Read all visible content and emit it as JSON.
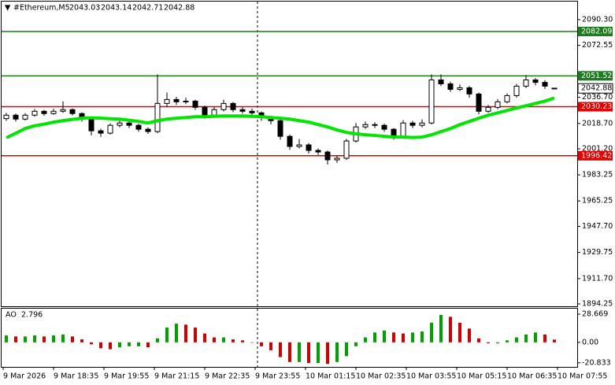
{
  "chart_data": [
    {
      "type": "candlestick",
      "title": "#Ethereum,M5",
      "candles": [
        [
          2022.0,
          2026.0,
          2020.5,
          2024.4
        ],
        [
          2024.4,
          2025.5,
          2020.0,
          2021.7
        ],
        [
          2021.7,
          2025.8,
          2020.8,
          2024.4
        ],
        [
          2024.4,
          2028.6,
          2023.3,
          2027.1
        ],
        [
          2027.1,
          2028.0,
          2024.0,
          2025.5
        ],
        [
          2025.5,
          2028.8,
          2024.6,
          2027.1
        ],
        [
          2027.1,
          2034.0,
          2026.0,
          2028.2
        ],
        [
          2028.2,
          2029.0,
          2024.2,
          2025.5
        ],
        [
          2025.5,
          2026.4,
          2020.0,
          2021.7
        ],
        [
          2021.7,
          2022.5,
          2010.5,
          2013.6
        ],
        [
          2013.6,
          2015.0,
          2009.5,
          2012.0
        ],
        [
          2012.0,
          2018.8,
          2011.0,
          2017.4
        ],
        [
          2017.4,
          2020.5,
          2016.0,
          2019.0
        ],
        [
          2019.0,
          2020.0,
          2015.5,
          2017.4
        ],
        [
          2017.4,
          2018.5,
          2013.0,
          2014.7
        ],
        [
          2014.7,
          2016.0,
          2011.5,
          2013.1
        ],
        [
          2013.1,
          2052.5,
          2012.0,
          2032.5
        ],
        [
          2032.5,
          2040.0,
          2030.0,
          2035.2
        ],
        [
          2035.2,
          2037.0,
          2031.5,
          2033.6
        ],
        [
          2033.6,
          2036.5,
          2032.0,
          2034.1
        ],
        [
          2034.1,
          2035.0,
          2028.0,
          2029.8
        ],
        [
          2029.8,
          2031.0,
          2022.0,
          2024.4
        ],
        [
          2024.4,
          2030.0,
          2023.0,
          2028.2
        ],
        [
          2028.2,
          2035.0,
          2027.0,
          2032.5
        ],
        [
          2032.5,
          2033.5,
          2026.5,
          2028.2
        ],
        [
          2028.2,
          2030.0,
          2025.5,
          2027.1
        ],
        [
          2027.1,
          2029.0,
          2024.5,
          2026.0
        ],
        [
          2026.0,
          2027.0,
          2020.5,
          2022.8
        ],
        [
          2022.8,
          2024.0,
          2018.0,
          2020.6
        ],
        [
          2020.6,
          2021.5,
          2007.5,
          2009.8
        ],
        [
          2009.8,
          2011.0,
          2000.5,
          2002.8
        ],
        [
          2002.8,
          2008.0,
          2001.5,
          2003.9
        ],
        [
          2003.9,
          2005.0,
          1998.0,
          2000.1
        ],
        [
          2000.1,
          2001.5,
          1997.0,
          1999.0
        ],
        [
          1999.0,
          2000.0,
          1990.5,
          1993.6
        ],
        [
          1993.6,
          1996.5,
          1991.5,
          1994.7
        ],
        [
          1994.7,
          2008.0,
          1993.5,
          2006.6
        ],
        [
          2006.6,
          2019.0,
          2005.5,
          2016.3
        ],
        [
          2016.3,
          2020.0,
          2015.0,
          2017.9
        ],
        [
          2017.9,
          2019.5,
          2015.5,
          2017.4
        ],
        [
          2017.4,
          2018.5,
          2013.0,
          2014.7
        ],
        [
          2014.7,
          2015.5,
          2007.5,
          2009.8
        ],
        [
          2009.8,
          2021.0,
          2008.5,
          2019.0
        ],
        [
          2019.0,
          2020.5,
          2015.5,
          2017.4
        ],
        [
          2017.4,
          2021.5,
          2016.0,
          2019.0
        ],
        [
          2019.0,
          2052.5,
          2018.0,
          2048.7
        ],
        [
          2048.7,
          2052.5,
          2044.5,
          2046.0
        ],
        [
          2046.0,
          2047.5,
          2040.5,
          2042.2
        ],
        [
          2042.2,
          2045.5,
          2041.0,
          2043.3
        ],
        [
          2043.3,
          2044.5,
          2036.5,
          2039.0
        ],
        [
          2039.0,
          2040.0,
          2025.0,
          2027.1
        ],
        [
          2027.1,
          2031.5,
          2026.0,
          2029.8
        ],
        [
          2029.8,
          2035.5,
          2028.5,
          2033.6
        ],
        [
          2033.6,
          2039.5,
          2032.5,
          2037.9
        ],
        [
          2037.9,
          2046.0,
          2036.5,
          2044.4
        ],
        [
          2044.4,
          2052.0,
          2043.0,
          2048.7
        ],
        [
          2048.7,
          2050.0,
          2045.0,
          2047.0
        ],
        [
          2047.0,
          2048.5,
          2042.5,
          2044.4
        ],
        [
          2043.03,
          2043.14,
          2042.71,
          2042.88
        ]
      ],
      "ma": {
        "color": "#00e600",
        "values": [
          2008.8,
          2012.0,
          2015.2,
          2017.1,
          2018.2,
          2019.6,
          2020.6,
          2021.5,
          2022.3,
          2022.6,
          2022.3,
          2022.0,
          2021.7,
          2020.9,
          2020.1,
          2019.0,
          2020.6,
          2021.7,
          2022.3,
          2022.8,
          2023.3,
          2023.3,
          2023.6,
          2023.9,
          2023.9,
          2023.9,
          2023.6,
          2023.3,
          2022.8,
          2022.3,
          2021.7,
          2020.6,
          2019.6,
          2017.9,
          2016.3,
          2014.2,
          2012.5,
          2011.5,
          2010.9,
          2010.4,
          2009.8,
          2009.3,
          2009.3,
          2009.0,
          2009.3,
          2010.9,
          2013.1,
          2015.2,
          2017.9,
          2020.1,
          2022.3,
          2024.4,
          2026.0,
          2027.7,
          2029.3,
          2030.9,
          2032.5,
          2034.1,
          2036.3
        ]
      },
      "levels": [
        {
          "value": 2082.09,
          "color": "#1b7d1b"
        },
        {
          "value": 2051.52,
          "color": "#1b7d1b"
        },
        {
          "value": 2030.23,
          "color": "#e00000"
        },
        {
          "value": 1996.42,
          "color": "#e00000"
        }
      ],
      "ylim": [
        1892.63,
        2102.72
      ],
      "yticks": [
        {
          "value": 2090.3,
          "label": "2090.30"
        },
        {
          "value": 2072.55,
          "label": "2072.55"
        },
        {
          "value": 2036.7,
          "label": "2036.70"
        },
        {
          "value": 2018.7,
          "label": "2018.70"
        },
        {
          "value": 2001.2,
          "label": "2001.20"
        },
        {
          "value": 1983.25,
          "label": "1983.25"
        },
        {
          "value": 1965.25,
          "label": "1965.25"
        },
        {
          "value": 1947.7,
          "label": "1947.70"
        },
        {
          "value": 1929.75,
          "label": "1929.75"
        },
        {
          "value": 1911.7,
          "label": "1911.70"
        },
        {
          "value": 1894.25,
          "label": "1894.25"
        }
      ],
      "x_labels": [
        "9 Mar 2026",
        "9 Mar 18:35",
        "9 Mar 19:55",
        "9 Mar 21:15",
        "9 Mar 22:35",
        "9 Mar 23:55",
        "10 Mar 01:15",
        "10 Mar 02:35",
        "10 Mar 03:55",
        "10 Mar 05:15",
        "10 Mar 06:35",
        "10 Mar 07:55"
      ]
    },
    {
      "type": "bar",
      "title": "AO",
      "values": [
        7,
        6,
        6,
        7,
        6,
        7,
        8,
        6,
        3,
        -2,
        -6,
        -7,
        -5,
        -4,
        -4,
        -5,
        4,
        15,
        19,
        18,
        15,
        9,
        5,
        5,
        3,
        2,
        0,
        -4,
        -8,
        -15,
        -20,
        -20,
        -21,
        -21,
        -22,
        -20,
        -14,
        -4,
        5,
        10,
        12,
        10,
        9,
        10,
        11,
        20,
        28,
        26,
        20,
        14,
        4,
        -1,
        -1,
        2,
        5,
        8,
        10,
        8,
        2.796
      ],
      "colors": {
        "up": "#00a000",
        "down": "#d00000"
      },
      "ylim": [
        -25.0,
        34.3
      ],
      "yticks": [
        28.669,
        {
          "value": 0,
          "label": "0.00"
        },
        -20.833
      ]
    }
  ]
}
